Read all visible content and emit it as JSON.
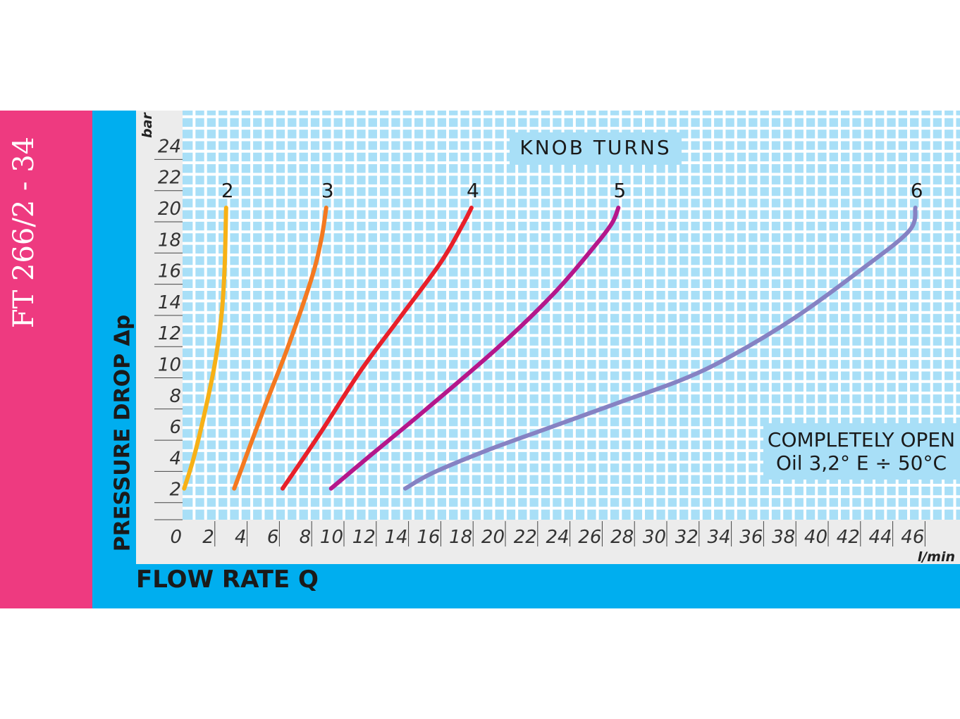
{
  "title": "FT 266/2 - 34",
  "colors": {
    "pink_band": "#ee3a80",
    "blue_band": "#00aeef",
    "grid_bg": "#a8dff7",
    "grid_lines": "#ffffff",
    "panel": "#ececec"
  },
  "chart_data": {
    "type": "line",
    "ylabel": "PRESSURE DROP Δp",
    "xlabel": "FLOW RATE Q",
    "y_unit": "bar",
    "x_unit": "l/min",
    "xlim": [
      0,
      46
    ],
    "ylim": [
      0,
      24
    ],
    "x_ticks": [
      "0",
      "2",
      "4",
      "6",
      "8",
      "10",
      "12",
      "14",
      "16",
      "18",
      "20",
      "22",
      "24",
      "26",
      "28",
      "30",
      "32",
      "34",
      "36",
      "38",
      "40",
      "42",
      "44",
      "46"
    ],
    "y_ticks": [
      "2",
      "4",
      "6",
      "8",
      "10",
      "12",
      "14",
      "16",
      "18",
      "20",
      "22",
      "24"
    ],
    "grid": true,
    "legend_title": "KNOB TURNS",
    "note_lines": [
      "COMPLETELY OPEN",
      "Oil 3,2° E ÷ 50°C"
    ],
    "series": [
      {
        "name": "2",
        "color": "#f7b116",
        "points": [
          [
            0.1,
            2.0
          ],
          [
            0.7,
            4.0
          ],
          [
            1.4,
            7.0
          ],
          [
            2.0,
            10.0
          ],
          [
            2.4,
            13.0
          ],
          [
            2.6,
            16.0
          ],
          [
            2.7,
            20.0
          ]
        ]
      },
      {
        "name": "3",
        "color": "#f47920",
        "points": [
          [
            3.2,
            2.0
          ],
          [
            5.0,
            7.0
          ],
          [
            6.5,
            11.0
          ],
          [
            8.0,
            15.5
          ],
          [
            8.6,
            18.0
          ],
          [
            8.9,
            20.0
          ]
        ]
      },
      {
        "name": "4",
        "color": "#e8202a",
        "points": [
          [
            6.2,
            2.0
          ],
          [
            8.5,
            5.5
          ],
          [
            11.0,
            9.5
          ],
          [
            13.5,
            13.0
          ],
          [
            16.0,
            16.5
          ],
          [
            17.4,
            19.0
          ],
          [
            17.9,
            20.0
          ]
        ]
      },
      {
        "name": "5",
        "color": "#b5178b",
        "points": [
          [
            9.2,
            2.0
          ],
          [
            11.5,
            4.0
          ],
          [
            15.0,
            7.0
          ],
          [
            19.5,
            11.0
          ],
          [
            23.0,
            14.5
          ],
          [
            25.5,
            17.5
          ],
          [
            26.6,
            19.0
          ],
          [
            27.0,
            20.0
          ]
        ]
      },
      {
        "name": "6",
        "color": "#8682c3",
        "points": [
          [
            13.8,
            2.0
          ],
          [
            15.5,
            3.0
          ],
          [
            19.0,
            4.5
          ],
          [
            23.0,
            6.0
          ],
          [
            27.0,
            7.5
          ],
          [
            31.0,
            9.0
          ],
          [
            34.0,
            10.5
          ],
          [
            38.0,
            13.0
          ],
          [
            42.0,
            16.0
          ],
          [
            45.0,
            18.5
          ],
          [
            45.4,
            20.0
          ]
        ]
      }
    ]
  }
}
